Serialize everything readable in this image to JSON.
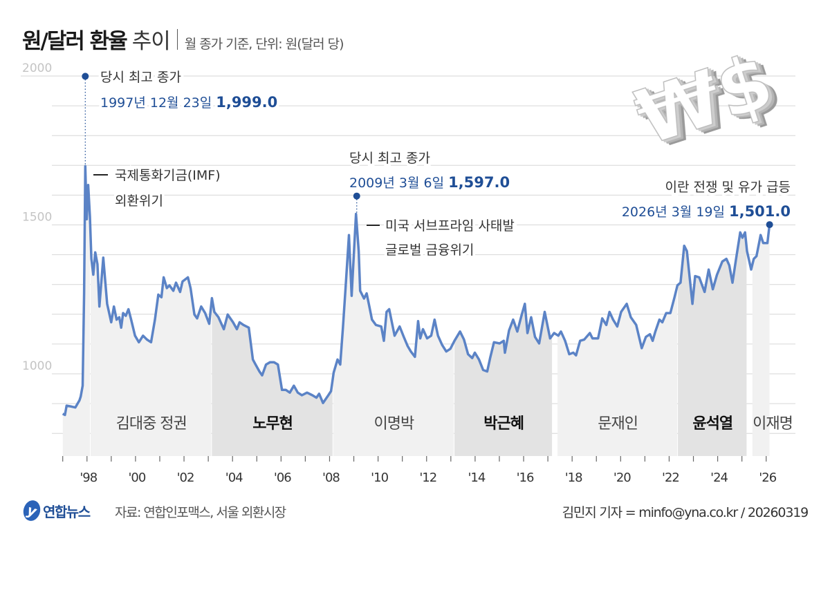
{
  "header": {
    "title_bold": "원/달러 환율",
    "title_light": "추이",
    "subtitle": "월 종가 기준, 단위: 원(달러 당)"
  },
  "graphic": {
    "currency_symbols": "₩$"
  },
  "footer": {
    "logo_mark": "y",
    "logo_text": "연합뉴스",
    "source": "자료: 연합인포맥스, 서울 외환시장",
    "credit": "김민지 기자 = minfo@yna.co.kr / 20260319"
  },
  "colors": {
    "line": "#5b83c6",
    "accent": "#1f4e96",
    "band_light": "#f1f1f1",
    "band_dark": "#e3e3e3",
    "grid": "#d6d6d6"
  },
  "chart_data": {
    "type": "line",
    "title": "원/달러 환율 추이",
    "ylim": [
      800,
      2000
    ],
    "xlim": [
      1997,
      2026.3
    ],
    "grid": true,
    "y_ticks": [
      {
        "value": 2000,
        "label": "2000"
      },
      {
        "value": 1500,
        "label": "1500"
      },
      {
        "value": 1000,
        "label": "1000"
      }
    ],
    "x_ticks": [
      {
        "year": 1998,
        "label": "'98"
      },
      {
        "year": 2000,
        "label": "'00"
      },
      {
        "year": 2002,
        "label": "'02"
      },
      {
        "year": 2004,
        "label": "'04"
      },
      {
        "year": 2006,
        "label": "'06"
      },
      {
        "year": 2008,
        "label": "'08"
      },
      {
        "year": 2010,
        "label": "'10"
      },
      {
        "year": 2012,
        "label": "'12"
      },
      {
        "year": 2014,
        "label": "'14"
      },
      {
        "year": 2016,
        "label": "'16"
      },
      {
        "year": 2018,
        "label": "'18"
      },
      {
        "year": 2020,
        "label": "'20"
      },
      {
        "year": 2022,
        "label": "'22"
      },
      {
        "year": 2024,
        "label": "'24"
      },
      {
        "year": 2026,
        "label": "'26"
      }
    ],
    "x": [
      1997.0,
      1997.09,
      1997.16,
      1997.36,
      1997.52,
      1997.69,
      1997.74,
      1997.82,
      1997.88,
      1997.93,
      1997.99,
      1998.05,
      1998.12,
      1998.18,
      1998.26,
      1998.34,
      1998.43,
      1998.51,
      1998.67,
      1998.83,
      1999.0,
      1999.11,
      1999.22,
      1999.33,
      1999.41,
      1999.49,
      1999.6,
      1999.71,
      1999.82,
      1999.98,
      2000.14,
      2000.31,
      2000.47,
      2000.64,
      2000.8,
      2000.94,
      2001.07,
      2001.16,
      2001.29,
      2001.4,
      2001.56,
      2001.67,
      2001.84,
      2001.94,
      2002.16,
      2002.27,
      2002.43,
      2002.54,
      2002.71,
      2002.87,
      2003.04,
      2003.15,
      2003.25,
      2003.42,
      2003.64,
      2003.8,
      2004.02,
      2004.18,
      2004.29,
      2004.45,
      2004.67,
      2004.84,
      2004.95,
      2005.11,
      2005.22,
      2005.38,
      2005.55,
      2005.71,
      2005.87,
      2006.04,
      2006.2,
      2006.36,
      2006.53,
      2006.69,
      2006.86,
      2007.07,
      2007.29,
      2007.46,
      2007.57,
      2007.73,
      2007.95,
      2008.06,
      2008.17,
      2008.33,
      2008.44,
      2008.55,
      2008.66,
      2008.8,
      2008.91,
      2008.98,
      2009.09,
      2009.2,
      2009.26,
      2009.42,
      2009.53,
      2009.64,
      2009.75,
      2009.91,
      2010.13,
      2010.24,
      2010.35,
      2010.46,
      2010.68,
      2010.89,
      2011.06,
      2011.22,
      2011.35,
      2011.52,
      2011.65,
      2011.74,
      2011.85,
      2012.02,
      2012.19,
      2012.33,
      2012.47,
      2012.64,
      2012.81,
      2012.98,
      2013.15,
      2013.38,
      2013.54,
      2013.71,
      2013.88,
      2013.99,
      2014.16,
      2014.33,
      2014.5,
      2014.62,
      2014.78,
      2015.01,
      2015.18,
      2015.23,
      2015.4,
      2015.57,
      2015.74,
      2015.91,
      2016.05,
      2016.16,
      2016.31,
      2016.47,
      2016.64,
      2016.87,
      2017.09,
      2017.26,
      2017.43,
      2017.54,
      2017.71,
      2017.88,
      2018.05,
      2018.16,
      2018.33,
      2018.5,
      2018.73,
      2018.84,
      2019.07,
      2019.24,
      2019.41,
      2019.54,
      2019.69,
      2019.86,
      2020.02,
      2020.25,
      2020.42,
      2020.64,
      2020.87,
      2021.04,
      2021.21,
      2021.32,
      2021.43,
      2021.6,
      2021.72,
      2021.88,
      2022.05,
      2022.22,
      2022.34,
      2022.47,
      2022.62,
      2022.73,
      2022.96,
      2023.07,
      2023.24,
      2023.46,
      2023.63,
      2023.8,
      2023.97,
      2024.19,
      2024.36,
      2024.48,
      2024.61,
      2024.76,
      2024.93,
      2025.02,
      2025.13,
      2025.21,
      2025.38,
      2025.49,
      2025.6,
      2025.77,
      2025.88,
      2026.05,
      2026.14
    ],
    "series": [
      {
        "values": [
          866,
          862,
          893,
          890,
          887,
          911,
          924,
          960,
          1270,
          1697,
          1519,
          1634,
          1528,
          1386,
          1333,
          1408,
          1368,
          1226,
          1390,
          1235,
          1173,
          1226,
          1182,
          1190,
          1155,
          1204,
          1195,
          1217,
          1182,
          1128,
          1106,
          1128,
          1115,
          1106,
          1182,
          1266,
          1257,
          1324,
          1288,
          1297,
          1279,
          1306,
          1275,
          1310,
          1324,
          1288,
          1199,
          1186,
          1226,
          1204,
          1168,
          1254,
          1208,
          1190,
          1150,
          1199,
          1173,
          1150,
          1173,
          1164,
          1155,
          1048,
          1031,
          1008,
          995,
          1031,
          1039,
          1039,
          1031,
          946,
          946,
          937,
          960,
          937,
          928,
          937,
          928,
          920,
          933,
          902,
          928,
          942,
          1004,
          1048,
          1031,
          1155,
          1288,
          1466,
          1262,
          1368,
          1537,
          1412,
          1279,
          1253,
          1270,
          1226,
          1182,
          1164,
          1159,
          1111,
          1208,
          1217,
          1128,
          1159,
          1124,
          1093,
          1075,
          1057,
          1177,
          1119,
          1150,
          1119,
          1128,
          1182,
          1128,
          1097,
          1075,
          1084,
          1111,
          1142,
          1115,
          1066,
          1053,
          1071,
          1048,
          1013,
          1008,
          1053,
          1106,
          1102,
          1111,
          1071,
          1146,
          1182,
          1142,
          1195,
          1235,
          1137,
          1190,
          1124,
          1102,
          1208,
          1119,
          1137,
          1128,
          1142,
          1111,
          1066,
          1071,
          1062,
          1111,
          1115,
          1137,
          1119,
          1119,
          1186,
          1164,
          1208,
          1182,
          1159,
          1208,
          1235,
          1190,
          1164,
          1086,
          1124,
          1133,
          1111,
          1142,
          1182,
          1173,
          1204,
          1204,
          1257,
          1297,
          1306,
          1430,
          1412,
          1235,
          1328,
          1324,
          1275,
          1350,
          1284,
          1332,
          1377,
          1386,
          1364,
          1306,
          1386,
          1475,
          1457,
          1475,
          1412,
          1350,
          1386,
          1395,
          1466,
          1439,
          1439,
          1501
        ]
      }
    ],
    "administrations": [
      {
        "label": "",
        "start": 1997.0,
        "end": 1998.15,
        "shade": "light"
      },
      {
        "label": "김대중 정권",
        "start": 1998.15,
        "end": 2003.15,
        "shade": "light"
      },
      {
        "label": "노무현",
        "start": 2003.15,
        "end": 2008.15,
        "shade": "dark"
      },
      {
        "label": "이명박",
        "start": 2008.15,
        "end": 2013.15,
        "shade": "light"
      },
      {
        "label": "박근혜",
        "start": 2013.15,
        "end": 2017.2,
        "shade": "dark"
      },
      {
        "label": "문재인",
        "start": 2017.4,
        "end": 2022.36,
        "shade": "light"
      },
      {
        "label": "윤석열",
        "start": 2022.36,
        "end": 2025.22,
        "shade": "dark"
      },
      {
        "label": "이재명",
        "start": 2025.43,
        "end": 2026.3,
        "shade": "light"
      }
    ],
    "annotations": [
      {
        "heading": "당시 최고 종가",
        "date": "1997년 12월 23일",
        "value_label": "1,999.0",
        "year": 1997.93,
        "value": 1999.0
      },
      {
        "heading": "당시 최고 종가",
        "date": "2009년 3월 6일",
        "value_label": "1,597.0",
        "year": 2009.12,
        "value": 1597.0
      },
      {
        "heading": "이란 전쟁 및 유가 급등",
        "date": "2026년 3월 19일",
        "value_label": "1,501.0",
        "year": 2026.14,
        "value": 1501.0
      }
    ],
    "events": [
      {
        "line1": "국제통화기금(IMF)",
        "line2": "외환위기"
      },
      {
        "line1": "미국 서브프라임 사태발",
        "line2": "글로벌 금융위기"
      }
    ]
  }
}
